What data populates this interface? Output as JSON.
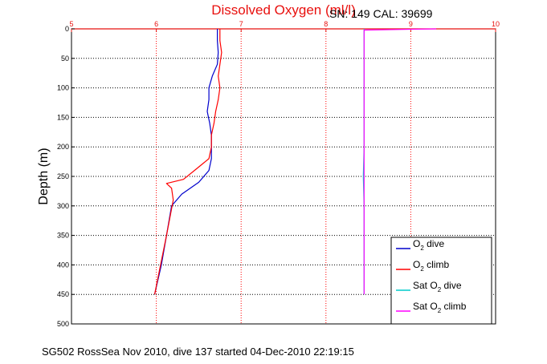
{
  "chart_data": {
    "type": "line",
    "title": "Dissolved Oxygen (ml/l)",
    "annotation": "SN: 149  CAL: 39699",
    "ylabel": "Depth (m)",
    "caption": "SG502 RossSea Nov 2010, dive 137 started 04-Dec-2010 22:19:15",
    "xlim": [
      5,
      10
    ],
    "ylim": [
      0,
      500
    ],
    "y_reversed": true,
    "x_axis_position": "top",
    "grid": true,
    "legend_position": "lower-right",
    "x_ticks": [
      "5",
      "6",
      "7",
      "8",
      "9",
      "10"
    ],
    "y_ticks": [
      "0",
      "50",
      "100",
      "150",
      "200",
      "250",
      "300",
      "350",
      "400",
      "450",
      "500"
    ],
    "series": [
      {
        "name": "O2 dive",
        "legend_label": "O",
        "legend_sub": "2",
        "legend_suffix": " dive",
        "color": "#0000cc",
        "points": [
          [
            6.72,
            0
          ],
          [
            6.72,
            20
          ],
          [
            6.73,
            40
          ],
          [
            6.72,
            60
          ],
          [
            6.66,
            80
          ],
          [
            6.62,
            100
          ],
          [
            6.62,
            120
          ],
          [
            6.6,
            140
          ],
          [
            6.63,
            160
          ],
          [
            6.65,
            180
          ],
          [
            6.65,
            200
          ],
          [
            6.65,
            220
          ],
          [
            6.62,
            240
          ],
          [
            6.5,
            260
          ],
          [
            6.3,
            280
          ],
          [
            6.18,
            300
          ],
          [
            6.12,
            350
          ],
          [
            6.06,
            400
          ],
          [
            5.98,
            450
          ]
        ]
      },
      {
        "name": "O2 climb",
        "legend_label": "O",
        "legend_sub": "2",
        "legend_suffix": " climb",
        "color": "#ff0000",
        "points": [
          [
            6.75,
            0
          ],
          [
            6.75,
            20
          ],
          [
            6.77,
            40
          ],
          [
            6.75,
            60
          ],
          [
            6.73,
            80
          ],
          [
            6.75,
            100
          ],
          [
            6.73,
            120
          ],
          [
            6.7,
            140
          ],
          [
            6.68,
            160
          ],
          [
            6.65,
            180
          ],
          [
            6.65,
            200
          ],
          [
            6.62,
            220
          ],
          [
            6.45,
            240
          ],
          [
            6.32,
            255
          ],
          [
            6.12,
            262
          ],
          [
            6.18,
            270
          ],
          [
            6.2,
            290
          ],
          [
            6.16,
            320
          ],
          [
            6.12,
            350
          ],
          [
            6.05,
            400
          ],
          [
            5.98,
            450
          ]
        ]
      },
      {
        "name": "Sat O2 dive",
        "legend_label": "Sat O",
        "legend_sub": "2",
        "legend_suffix": " dive",
        "color": "#00cccc",
        "points": [
          [
            8.45,
            0
          ],
          [
            8.45,
            100
          ],
          [
            8.45,
            200
          ],
          [
            8.44,
            250
          ],
          [
            8.45,
            300
          ],
          [
            8.45,
            350
          ],
          [
            8.45,
            400
          ],
          [
            8.45,
            450
          ]
        ]
      },
      {
        "name": "Sat O2 climb",
        "legend_label": "Sat O",
        "legend_sub": "2",
        "legend_suffix": " climb",
        "color": "#ff00ff",
        "points": [
          [
            9.3,
            0
          ],
          [
            8.45,
            2
          ],
          [
            8.45,
            100
          ],
          [
            8.45,
            200
          ],
          [
            8.45,
            300
          ],
          [
            8.45,
            400
          ],
          [
            8.45,
            450
          ]
        ]
      }
    ]
  }
}
